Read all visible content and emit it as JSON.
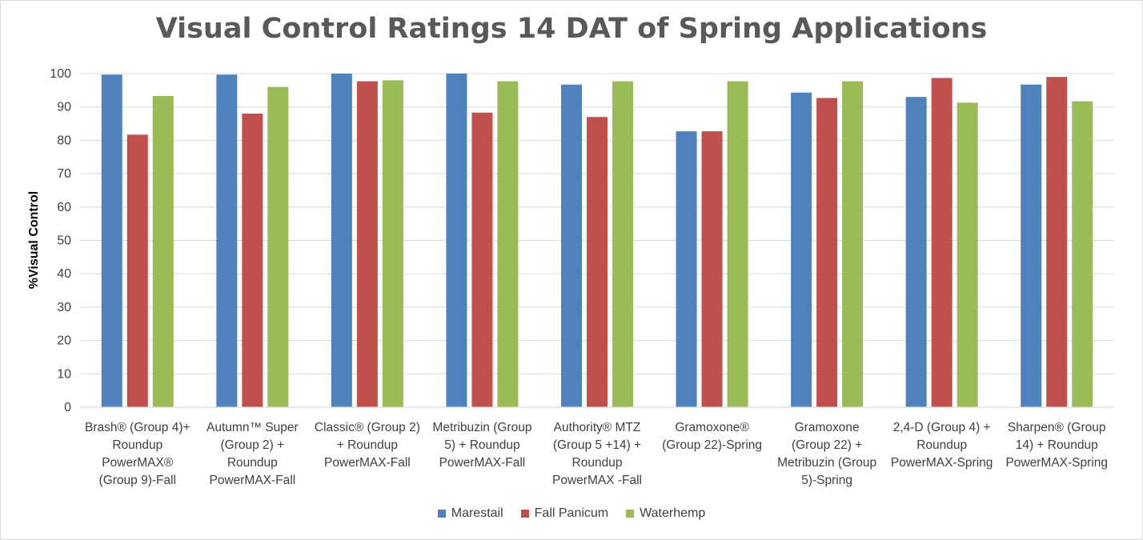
{
  "chart_data": {
    "type": "bar",
    "title": "Visual Control Ratings 14 DAT of Spring Applications",
    "ylabel": "%Visual Control",
    "xlabel": "",
    "ylim": [
      0,
      100
    ],
    "yticks": [
      "0",
      "10",
      "20",
      "30",
      "40",
      "50",
      "60",
      "70",
      "80",
      "90",
      "100"
    ],
    "grid": true,
    "legend_position": "bottom",
    "categories": [
      [
        "Brash® (Group 4)+",
        "Roundup",
        "PowerMAX®",
        "(Group 9)-Fall"
      ],
      [
        "Autumn™ Super",
        "(Group 2) +",
        "Roundup",
        "PowerMAX-Fall"
      ],
      [
        "Classic® (Group 2)",
        "+ Roundup",
        "PowerMAX-Fall"
      ],
      [
        "Metribuzin (Group",
        "5) + Roundup",
        "PowerMAX-Fall"
      ],
      [
        "Authority® MTZ",
        "(Group 5 +14) +",
        "Roundup",
        "PowerMAX -Fall"
      ],
      [
        "Gramoxone®",
        "(Group 22)-Spring"
      ],
      [
        "Gramoxone",
        "(Group 22) +",
        "Metribuzin (Group",
        "5)-Spring"
      ],
      [
        "2,4-D (Group 4)  +",
        "Roundup",
        "PowerMAX-Spring"
      ],
      [
        "Sharpen® (Group",
        "14) +  Roundup",
        "PowerMAX-Spring"
      ]
    ],
    "series": [
      {
        "name": "Marestail",
        "color": "#4f81bd",
        "values": [
          99.7,
          99.7,
          100,
          100,
          96.7,
          82.7,
          94.3,
          93.0,
          96.7
        ]
      },
      {
        "name": "Fall Panicum",
        "color": "#c0504d",
        "values": [
          81.7,
          88.0,
          97.7,
          88.3,
          87.0,
          82.7,
          92.7,
          98.7,
          99.0
        ]
      },
      {
        "name": "Waterhemp",
        "color": "#9bbb59",
        "values": [
          93.3,
          96.0,
          98.0,
          97.7,
          97.7,
          97.7,
          97.7,
          91.3,
          91.7
        ]
      }
    ]
  }
}
